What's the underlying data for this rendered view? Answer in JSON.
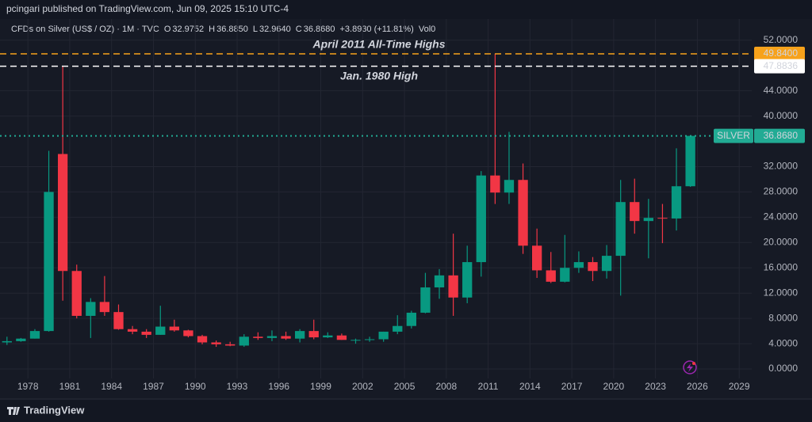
{
  "header": {
    "text": "pcingari published on TradingView.com, Jun 09, 2025 15:10 UTC-4"
  },
  "legend": {
    "symbol": "CFDs on Silver (US$ / OZ) · 1M · TVC",
    "ohlc": [
      {
        "key": "O",
        "value": "32.9752"
      },
      {
        "key": "H",
        "value": "36.8850"
      },
      {
        "key": "L",
        "value": "32.9640"
      },
      {
        "key": "C",
        "value": "36.8680"
      }
    ],
    "change": "+3.8930 (+11.81%)",
    "volume": "Vol0"
  },
  "footer": {
    "brand": "TradingView"
  },
  "chart_data": {
    "type": "candlestick",
    "up_color": "#089981",
    "down_color": "#f23645",
    "grid": true,
    "x": [
      1976,
      1977,
      1978,
      1979,
      1980,
      1981,
      1982,
      1983,
      1984,
      1985,
      1986,
      1987,
      1988,
      1989,
      1990,
      1991,
      1992,
      1993,
      1994,
      1995,
      1996,
      1997,
      1998,
      1999,
      2000,
      2001,
      2002,
      2003,
      2004,
      2005,
      2006,
      2007,
      2008,
      2009,
      2010,
      2011,
      2012,
      2013,
      2014,
      2015,
      2016,
      2017,
      2018,
      2019,
      2020,
      2021,
      2022,
      2023,
      2024,
      2025
    ],
    "open": [
      4.2,
      4.4,
      4.8,
      6.0,
      34.0,
      15.5,
      8.4,
      10.6,
      9.0,
      6.3,
      5.9,
      5.4,
      6.7,
      6.1,
      5.2,
      4.2,
      3.9,
      3.7,
      5.1,
      4.9,
      5.2,
      4.8,
      6.0,
      5.0,
      5.3,
      4.6,
      4.6,
      4.7,
      5.9,
      6.8,
      8.9,
      12.9,
      14.8,
      11.3,
      16.9,
      30.6,
      27.9,
      29.9,
      19.5,
      15.6,
      13.8,
      16.0,
      16.9,
      15.5,
      17.9,
      26.4,
      23.4,
      23.9,
      23.8,
      28.9
    ],
    "high": [
      5.1,
      4.9,
      6.3,
      34.5,
      47.8836,
      16.5,
      11.2,
      14.7,
      10.2,
      6.8,
      6.3,
      10.0,
      7.8,
      6.2,
      5.4,
      4.5,
      4.3,
      5.5,
      5.8,
      6.1,
      5.9,
      6.3,
      7.8,
      5.8,
      5.6,
      4.8,
      5.1,
      5.9,
      8.5,
      9.2,
      15.2,
      15.8,
      21.4,
      19.5,
      31.3,
      49.84,
      37.5,
      32.5,
      22.2,
      18.5,
      21.2,
      18.6,
      17.7,
      19.6,
      29.9,
      30.1,
      26.9,
      26.1,
      34.9,
      36.885
    ],
    "low": [
      3.8,
      4.3,
      4.8,
      5.9,
      10.8,
      8.0,
      4.9,
      8.4,
      6.2,
      5.5,
      4.9,
      5.4,
      5.9,
      5.0,
      3.9,
      3.5,
      3.6,
      3.5,
      4.6,
      4.4,
      4.6,
      4.2,
      4.7,
      4.9,
      4.6,
      4.0,
      4.3,
      4.3,
      5.5,
      6.4,
      8.8,
      11.1,
      8.4,
      10.4,
      14.6,
      26.1,
      26.1,
      18.2,
      14.4,
      13.6,
      13.7,
      15.2,
      13.9,
      14.3,
      11.6,
      21.4,
      17.5,
      19.9,
      21.9,
      28.8
    ],
    "close": [
      4.4,
      4.8,
      6.0,
      28.0,
      15.5,
      8.4,
      10.6,
      9.0,
      6.3,
      5.9,
      5.4,
      6.7,
      6.1,
      5.2,
      4.2,
      3.9,
      3.7,
      5.1,
      4.9,
      5.2,
      4.8,
      6.0,
      5.0,
      5.3,
      4.6,
      4.6,
      4.7,
      5.9,
      6.8,
      8.9,
      12.9,
      14.8,
      11.3,
      16.9,
      30.6,
      27.9,
      29.9,
      19.5,
      15.6,
      13.8,
      16.0,
      16.9,
      15.5,
      17.9,
      26.4,
      23.4,
      23.9,
      23.8,
      28.9,
      36.868
    ],
    "xlim": [
      1976.0,
      2029.9
    ],
    "xticks": [
      1978,
      1981,
      1984,
      1987,
      1990,
      1993,
      1996,
      1999,
      2002,
      2005,
      2008,
      2011,
      2014,
      2017,
      2020,
      2023,
      2026,
      2029
    ],
    "ylim": [
      -1.5,
      54.6
    ],
    "yticks": [
      {
        "value": 0,
        "label": "0.0000"
      },
      {
        "value": 4,
        "label": "4.0000"
      },
      {
        "value": 8,
        "label": "8.0000"
      },
      {
        "value": 12,
        "label": "12.0000"
      },
      {
        "value": 16,
        "label": "16.0000"
      },
      {
        "value": 20,
        "label": "20.0000"
      },
      {
        "value": 24,
        "label": "24.0000"
      },
      {
        "value": 28,
        "label": "28.0000"
      },
      {
        "value": 32,
        "label": "32.0000"
      },
      {
        "value": 40,
        "label": "40.0000"
      },
      {
        "value": 44,
        "label": "44.0000"
      },
      {
        "value": 52,
        "label": "52.0000"
      }
    ],
    "hlines": [
      {
        "value": 49.84,
        "label": "49.8400",
        "text": "April 2011 All-Time Highs",
        "color": "#f7a21b",
        "style": "dashed"
      },
      {
        "value": 47.8836,
        "label": "47.8836",
        "text": "Jan. 1980 High",
        "color": "#ffffff",
        "style": "dashed"
      },
      {
        "value": 36.868,
        "label": "36.8680",
        "name": "SILVER",
        "color": "#22ab94",
        "style": "dotted"
      }
    ]
  }
}
